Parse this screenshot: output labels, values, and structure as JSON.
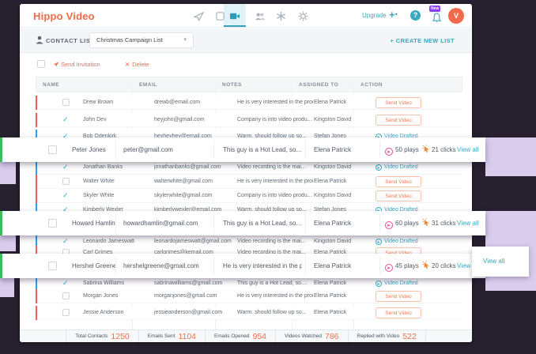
{
  "colors": {
    "accent_teal": "#35a8be",
    "brand_orange": "#f26a4c",
    "status_red": "#f25c5c",
    "status_blue": "#2e9ff2",
    "overlay_green": "#3fbb58",
    "plays_pink": "#ea4c9c",
    "clicks_orange": "#f5862e",
    "lavender_accent": "#d9cdee",
    "background_dark": "#27212f"
  },
  "topnav": {
    "logo": "Hippo Video",
    "upgrade_label": "Upgrade",
    "plus_label": "+",
    "help_label": "?",
    "new_badge": "New",
    "avatar_initial": "V",
    "icons": [
      "launch-icon",
      "records-icon",
      "video-library-icon",
      "contacts-icon",
      "integrations-icon",
      "settings-icon",
      "help-icon",
      "bell-icon"
    ]
  },
  "listbar": {
    "title": "CONTACT LIST",
    "selected_list": "Christmas Campaign List",
    "create_new_label": "+ CREATE NEW LIST"
  },
  "actionbar": {
    "send_invitation_label": "Send Invitation",
    "delete_label": "Delete",
    "delete_icon": "✕"
  },
  "table": {
    "headers": [
      "NAME",
      "EMAIL",
      "NOTES",
      "ASSIGNED TO",
      "ACTION"
    ],
    "action_labels": {
      "send": "Send Video",
      "drafted": "Video Drafted"
    },
    "rows": [
      {
        "name": "Drew Brown",
        "email": "drewb@email.com",
        "notes": "He is very interested in the prod...",
        "assigned": "Elena Patrick",
        "action": "send",
        "checked": false,
        "border": "red"
      },
      {
        "name": "John Dev",
        "email": "heyjohn@gmail.com",
        "notes": "Company is into video produ...",
        "assigned": "Kingston David",
        "action": "send",
        "checked": true,
        "border": "red"
      },
      {
        "name": "Bob Odenkirk",
        "email": "heyheyhey@email.com",
        "notes": "Warm. should follow up so...",
        "assigned": "Stefan Jones",
        "action": "drafted",
        "checked": true,
        "border": "blue"
      },
      {
        "name": "Jonathan Banks",
        "email": "jonathanbanks@gmail.com",
        "notes": "Video recording is the mai...",
        "assigned": "Kingston David",
        "action": "drafted",
        "checked": true,
        "border": "blue"
      },
      {
        "name": "Walter White",
        "email": "walterwhite@gmail.com",
        "notes": "He is very interested in the prod...",
        "assigned": "Elena Patrick",
        "action": "send",
        "checked": false,
        "border": "red"
      },
      {
        "name": "Skyler White",
        "email": "skylerwhite@gmail.com",
        "notes": "Company is into video produ...",
        "assigned": "Kingston David",
        "action": "send",
        "checked": true,
        "border": "red"
      },
      {
        "name": "Kimberly Wexler",
        "email": "kimberlywexler@email.com",
        "notes": "Warm. should follow up so...",
        "assigned": "Stefan Jones",
        "action": "drafted",
        "checked": true,
        "border": "blue"
      },
      {
        "name": "Leonardo Jameswatt",
        "email": "leonardojameswatt@gmail.com",
        "notes": "Video recording is the mai...",
        "assigned": "Kingston David",
        "action": "drafted",
        "checked": true,
        "border": "blue"
      },
      {
        "name": "Carl Grimes",
        "email": "carlgrimes@kemail.com",
        "notes": "Video recording is the mai...",
        "assigned": "Elena Patrick",
        "action": "send",
        "checked": false,
        "border": "red"
      },
      {
        "name": "Sabrina Williams",
        "email": "sabrinawilliams@gmail.com",
        "notes": "This guy is a Hot Lead, so....",
        "assigned": "Elena Patrick",
        "action": "drafted",
        "checked": true,
        "border": "blue"
      },
      {
        "name": "Morgan Jones",
        "email": "morganjones@gmail.com",
        "notes": "He is very interested in the prod...",
        "assigned": "Elena Patrick",
        "action": "send",
        "checked": false,
        "border": "red"
      },
      {
        "name": "Jessie Anderson",
        "email": "jessieanderson@gmail.com",
        "notes": "Warm..should follow up so...",
        "assigned": "Elena Patrick",
        "action": "send",
        "checked": false,
        "border": "red"
      }
    ]
  },
  "overlays": [
    {
      "name": "Peter Jones",
      "email": "peter@gmail.com",
      "notes": "This guy is a Hot Lead, so...",
      "assigned": "Elena Patrick",
      "plays": "50 plays",
      "clicks": "21 clicks",
      "view_all": "View all"
    },
    {
      "name": "Howard Hamlin",
      "email": "howardhamlin@gmail.com",
      "notes": "This guy is a Hot Lead, so...",
      "assigned": "Elena Patrick",
      "plays": "60 plays",
      "clicks": "31 clicks",
      "view_all": "View all"
    },
    {
      "name": "Hershel Greene",
      "email": "hershelgreene@gmail.com",
      "notes": "He is very interested in the prod...",
      "assigned": "Elena Patrick",
      "plays": "45 plays",
      "clicks": "20 clicks",
      "view_all": "View all"
    }
  ],
  "floating_panel": {
    "view_all_label": "View all"
  },
  "footer": {
    "stats": [
      {
        "label": "Total Contacts",
        "value": "1250"
      },
      {
        "label": "Emails Sent",
        "value": "1104"
      },
      {
        "label": "Emails Opened",
        "value": "954"
      },
      {
        "label": "Videos Watched",
        "value": "786"
      },
      {
        "label": "Replied with Video",
        "value": "522"
      }
    ]
  }
}
